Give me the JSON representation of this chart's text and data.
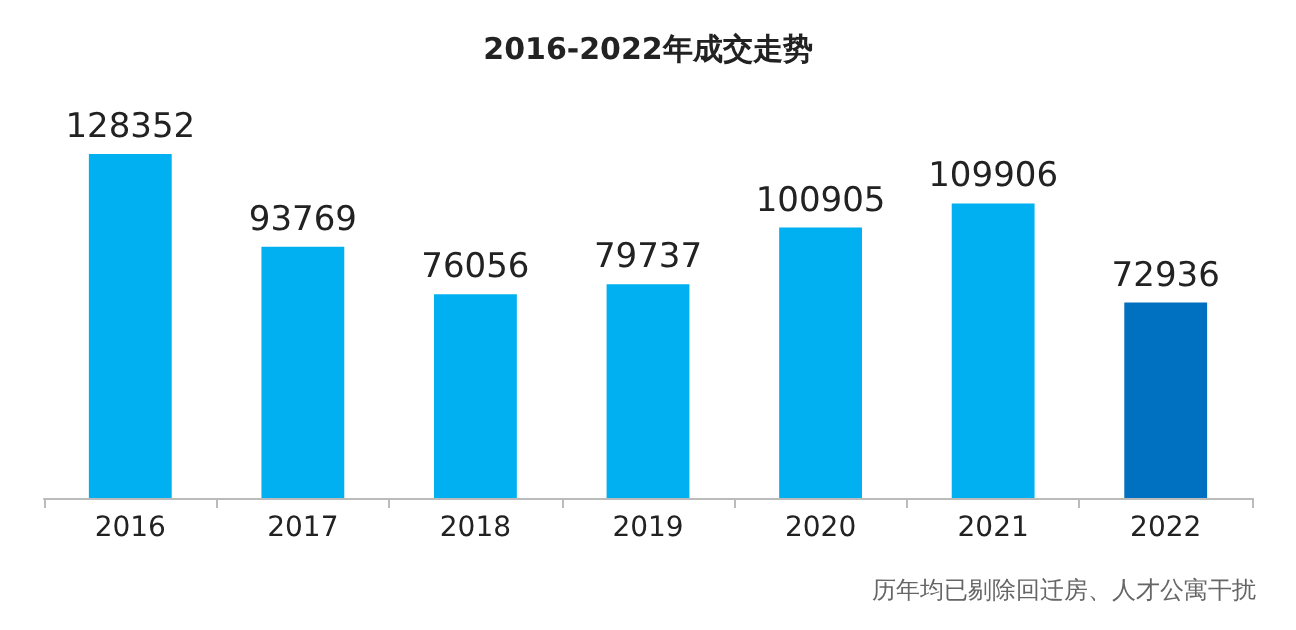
{
  "chart_data": {
    "type": "bar",
    "title": "2016-2022年成交走势",
    "categories": [
      "2016",
      "2017",
      "2018",
      "2019",
      "2020",
      "2021",
      "2022"
    ],
    "values": [
      128352,
      93769,
      76056,
      79737,
      100905,
      109906,
      72936
    ],
    "colors": [
      "#00b0f0",
      "#00b0f0",
      "#00b0f0",
      "#00b0f0",
      "#00b0f0",
      "#00b0f0",
      "#0070c0"
    ],
    "data_labels": true,
    "annotations": [
      "历年均已剔除回迁房、人才公寓干扰"
    ]
  }
}
